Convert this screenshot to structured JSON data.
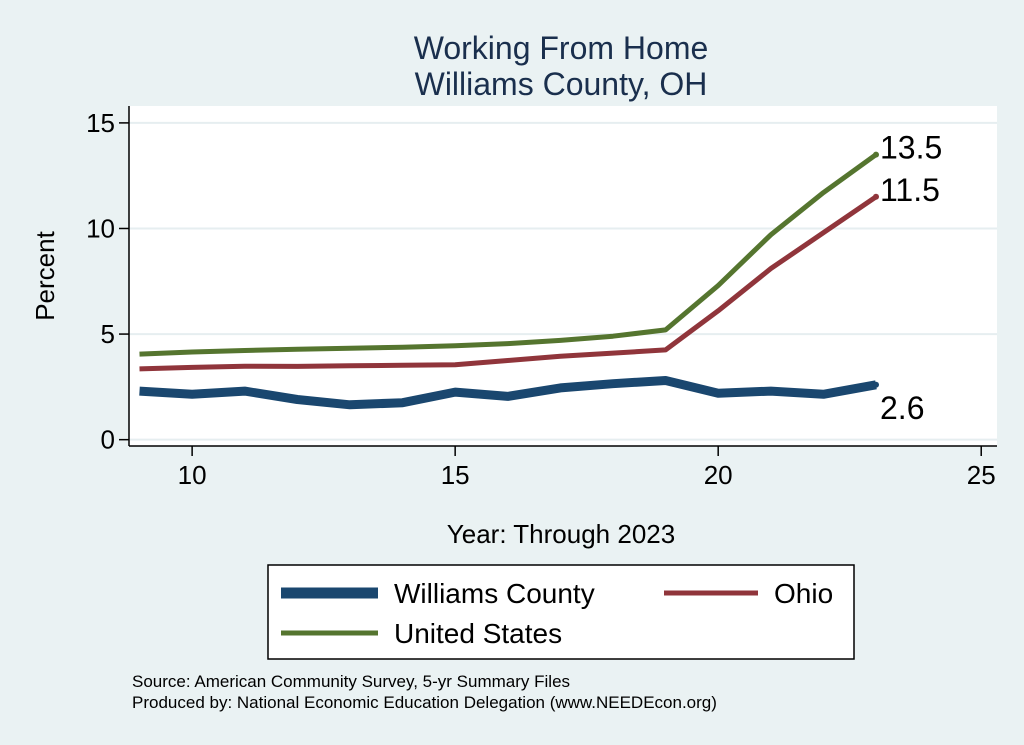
{
  "chart_data": {
    "type": "line",
    "title": [
      "Working From Home",
      "Williams County, OH"
    ],
    "xlabel": "Year: Through 2023",
    "ylabel": "Percent",
    "xlim": [
      8.8,
      25.3
    ],
    "ylim": [
      -0.3,
      15.8
    ],
    "x_ticks": [
      10,
      15,
      20,
      25
    ],
    "y_ticks": [
      0,
      5,
      10,
      15
    ],
    "grid": true,
    "legend_position": "bottom",
    "x": [
      9,
      10,
      11,
      12,
      13,
      14,
      15,
      16,
      17,
      18,
      19,
      20,
      21,
      22,
      23
    ],
    "series": [
      {
        "name": "Williams County",
        "color": "#1a476f",
        "values": [
          2.3,
          2.15,
          2.3,
          1.9,
          1.65,
          1.75,
          2.25,
          2.05,
          2.45,
          2.65,
          2.8,
          2.2,
          2.3,
          2.15,
          2.6
        ],
        "end_label": "2.6"
      },
      {
        "name": "Ohio",
        "color": "#90353b",
        "values": [
          3.35,
          3.42,
          3.48,
          3.47,
          3.5,
          3.52,
          3.55,
          3.75,
          3.95,
          4.1,
          4.25,
          6.1,
          8.1,
          9.8,
          11.5
        ],
        "end_label": "11.5"
      },
      {
        "name": "United States",
        "color": "#55752f",
        "values": [
          4.05,
          4.15,
          4.22,
          4.28,
          4.33,
          4.38,
          4.45,
          4.55,
          4.7,
          4.9,
          5.2,
          7.3,
          9.7,
          11.7,
          13.5
        ],
        "end_label": "13.5"
      }
    ],
    "notes": [
      "Source: American Community Survey, 5-yr Summary Files",
      "Produced by: National Economic Education Delegation (www.NEEDEcon.org)"
    ]
  }
}
